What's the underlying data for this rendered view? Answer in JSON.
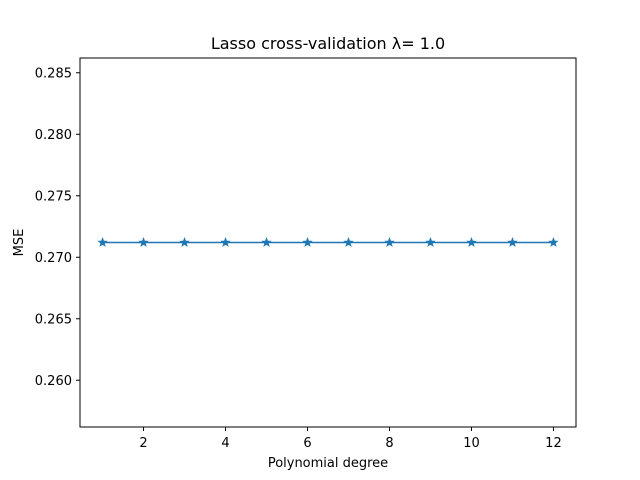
{
  "chart_data": {
    "type": "line",
    "title": "Lasso cross-validation λ= 1.0",
    "xlabel": "Polynomial degree",
    "ylabel": "MSE",
    "xlim": [
      0.45,
      12.55
    ],
    "ylim": [
      0.2562,
      0.2862
    ],
    "xticks": [
      2,
      4,
      6,
      8,
      10,
      12
    ],
    "xtick_labels": [
      "2",
      "4",
      "6",
      "8",
      "10",
      "12"
    ],
    "yticks": [
      0.26,
      0.265,
      0.27,
      0.275,
      0.28,
      0.285
    ],
    "ytick_labels": [
      "0.260",
      "0.265",
      "0.270",
      "0.275",
      "0.280",
      "0.285"
    ],
    "grid": false,
    "series": [
      {
        "marker": "star",
        "color": "#1f77b4",
        "x": [
          1,
          2,
          3,
          4,
          5,
          6,
          7,
          8,
          9,
          10,
          11,
          12
        ],
        "y": [
          0.2712,
          0.2712,
          0.2712,
          0.2712,
          0.2712,
          0.2712,
          0.2712,
          0.2712,
          0.2712,
          0.2712,
          0.2712,
          0.2712
        ]
      }
    ]
  }
}
